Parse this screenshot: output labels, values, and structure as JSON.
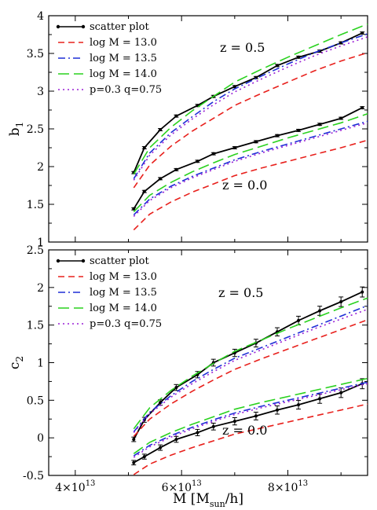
{
  "chart_data": [
    {
      "type": "line",
      "ylabel": "b1",
      "ylim": [
        1,
        4
      ],
      "xlim": [
        35000000000000.0,
        95000000000000.0
      ],
      "yticks": [
        "1",
        "1.5",
        "2",
        "2.5",
        "3",
        "3.5",
        "4"
      ],
      "grid": false,
      "legend": "top-left",
      "x": [
        51000000000000.0,
        52000000000000.0,
        54000000000000.0,
        57000000000000.0,
        60000000000000.0,
        64000000000000.0,
        68000000000000.0,
        72000000000000.0,
        76000000000000.0,
        80000000000000.0,
        84000000000000.0,
        88000000000000.0,
        93000000000000.0
      ],
      "annotations": [
        "z = 0.5",
        "z = 0.0"
      ],
      "series": [
        {
          "name": "scatter plot",
          "style": "solid-errorbar",
          "color": "#000000",
          "group": "z = 0.5",
          "x": [
            51000000000000.0,
            53000000000000.0,
            56000000000000.0,
            59000000000000.0,
            63000000000000.0,
            66000000000000.0,
            70000000000000.0,
            74000000000000.0,
            78000000000000.0,
            82000000000000.0,
            86000000000000.0,
            90000000000000.0,
            94000000000000.0
          ],
          "values": [
            1.92,
            2.25,
            2.49,
            2.67,
            2.81,
            2.93,
            3.06,
            3.18,
            3.34,
            3.45,
            3.53,
            3.64,
            3.77
          ]
        },
        {
          "name": "log M = 13.0",
          "style": "dashed",
          "color": "#e8201c",
          "group": "z = 0.5",
          "x": [
            51000000000000.0,
            54000000000000.0,
            58000000000000.0,
            62000000000000.0,
            66000000000000.0,
            70000000000000.0,
            75000000000000.0,
            80000000000000.0,
            85000000000000.0,
            90000000000000.0,
            95000000000000.0
          ],
          "values": [
            1.72,
            2.02,
            2.27,
            2.47,
            2.64,
            2.81,
            2.97,
            3.12,
            3.27,
            3.4,
            3.51
          ]
        },
        {
          "name": "log M = 13.5",
          "style": "dashdot",
          "color": "#1f2fd6",
          "group": "z = 0.5",
          "x": [
            51000000000000.0,
            54000000000000.0,
            58000000000000.0,
            62000000000000.0,
            66000000000000.0,
            70000000000000.0,
            75000000000000.0,
            80000000000000.0,
            85000000000000.0,
            90000000000000.0,
            95000000000000.0
          ],
          "values": [
            1.84,
            2.18,
            2.45,
            2.66,
            2.86,
            3.03,
            3.2,
            3.36,
            3.51,
            3.64,
            3.76
          ]
        },
        {
          "name": "log M = 14.0",
          "style": "longdash",
          "color": "#2ad21f",
          "group": "z = 0.5",
          "x": [
            51000000000000.0,
            54000000000000.0,
            58000000000000.0,
            62000000000000.0,
            66000000000000.0,
            70000000000000.0,
            75000000000000.0,
            80000000000000.0,
            85000000000000.0,
            90000000000000.0,
            95000000000000.0
          ],
          "values": [
            1.9,
            2.25,
            2.52,
            2.74,
            2.93,
            3.12,
            3.29,
            3.45,
            3.6,
            3.75,
            3.89
          ]
        },
        {
          "name": "p=0.3 q=0.75",
          "style": "dotted",
          "color": "#9a1fd6",
          "group": "z = 0.5",
          "x": [
            51000000000000.0,
            54000000000000.0,
            58000000000000.0,
            62000000000000.0,
            66000000000000.0,
            70000000000000.0,
            75000000000000.0,
            80000000000000.0,
            85000000000000.0,
            90000000000000.0,
            95000000000000.0
          ],
          "values": [
            1.82,
            2.15,
            2.42,
            2.63,
            2.82,
            2.99,
            3.16,
            3.32,
            3.47,
            3.6,
            3.72
          ]
        },
        {
          "name": "scatter plot",
          "style": "solid-errorbar",
          "color": "#000000",
          "group": "z = 0.0",
          "x": [
            51000000000000.0,
            53000000000000.0,
            56000000000000.0,
            59000000000000.0,
            63000000000000.0,
            66000000000000.0,
            70000000000000.0,
            74000000000000.0,
            78000000000000.0,
            82000000000000.0,
            86000000000000.0,
            90000000000000.0,
            94000000000000.0
          ],
          "values": [
            1.44,
            1.67,
            1.84,
            1.96,
            2.07,
            2.17,
            2.25,
            2.33,
            2.41,
            2.48,
            2.56,
            2.64,
            2.78
          ]
        },
        {
          "name": "log M = 13.0",
          "style": "dashed",
          "color": "#e8201c",
          "group": "z = 0.0",
          "x": [
            51000000000000.0,
            54000000000000.0,
            58000000000000.0,
            62000000000000.0,
            66000000000000.0,
            70000000000000.0,
            75000000000000.0,
            80000000000000.0,
            85000000000000.0,
            90000000000000.0,
            95000000000000.0
          ],
          "values": [
            1.16,
            1.37,
            1.53,
            1.66,
            1.77,
            1.88,
            1.98,
            2.07,
            2.16,
            2.25,
            2.35
          ]
        },
        {
          "name": "log M = 13.5",
          "style": "dashdot",
          "color": "#1f2fd6",
          "group": "z = 0.0",
          "x": [
            51000000000000.0,
            54000000000000.0,
            58000000000000.0,
            62000000000000.0,
            66000000000000.0,
            70000000000000.0,
            75000000000000.0,
            80000000000000.0,
            85000000000000.0,
            90000000000000.0,
            95000000000000.0
          ],
          "values": [
            1.36,
            1.57,
            1.74,
            1.87,
            1.98,
            2.09,
            2.2,
            2.3,
            2.4,
            2.5,
            2.6
          ]
        },
        {
          "name": "log M = 14.0",
          "style": "longdash",
          "color": "#2ad21f",
          "group": "z = 0.0",
          "x": [
            51000000000000.0,
            54000000000000.0,
            58000000000000.0,
            62000000000000.0,
            66000000000000.0,
            70000000000000.0,
            75000000000000.0,
            80000000000000.0,
            85000000000000.0,
            90000000000000.0,
            95000000000000.0
          ],
          "values": [
            1.4,
            1.62,
            1.79,
            1.93,
            2.05,
            2.16,
            2.27,
            2.38,
            2.48,
            2.58,
            2.7
          ]
        },
        {
          "name": "p=0.3 q=0.75",
          "style": "dotted",
          "color": "#9a1fd6",
          "group": "z = 0.0",
          "x": [
            51000000000000.0,
            54000000000000.0,
            58000000000000.0,
            62000000000000.0,
            66000000000000.0,
            70000000000000.0,
            75000000000000.0,
            80000000000000.0,
            85000000000000.0,
            90000000000000.0,
            95000000000000.0
          ],
          "values": [
            1.34,
            1.55,
            1.72,
            1.85,
            1.96,
            2.07,
            2.18,
            2.28,
            2.38,
            2.48,
            2.58
          ]
        }
      ]
    },
    {
      "type": "line",
      "ylabel": "c2",
      "xlabel": "M [M_sun/h]",
      "ylim": [
        -0.5,
        2.5
      ],
      "xlim": [
        35000000000000.0,
        95000000000000.0
      ],
      "yticks": [
        "-0.5",
        "0",
        "0.5",
        "1",
        "1.5",
        "2",
        "2.5"
      ],
      "xticks": [
        "2×10^13",
        "4×10^13",
        "6×10^13",
        "8×10^13"
      ],
      "grid": false,
      "legend": "top-left",
      "annotations": [
        "z = 0.5",
        "z = 0.0"
      ],
      "series": [
        {
          "name": "scatter plot",
          "style": "solid-errorbar",
          "color": "#000000",
          "group": "z = 0.5",
          "x": [
            51000000000000.0,
            53000000000000.0,
            56000000000000.0,
            59000000000000.0,
            63000000000000.0,
            66000000000000.0,
            70000000000000.0,
            74000000000000.0,
            78000000000000.0,
            82000000000000.0,
            86000000000000.0,
            90000000000000.0,
            94000000000000.0
          ],
          "values": [
            -0.02,
            0.24,
            0.47,
            0.67,
            0.84,
            1.0,
            1.13,
            1.26,
            1.41,
            1.56,
            1.69,
            1.81,
            1.94
          ]
        },
        {
          "name": "log M = 13.0",
          "style": "dashed",
          "color": "#e8201c",
          "group": "z = 0.5",
          "x": [
            51000000000000.0,
            54000000000000.0,
            58000000000000.0,
            62000000000000.0,
            66000000000000.0,
            70000000000000.0,
            75000000000000.0,
            80000000000000.0,
            85000000000000.0,
            90000000000000.0,
            95000000000000.0
          ],
          "values": [
            0.02,
            0.25,
            0.45,
            0.62,
            0.77,
            0.91,
            1.05,
            1.18,
            1.31,
            1.44,
            1.57
          ]
        },
        {
          "name": "log M = 13.5",
          "style": "dashdot",
          "color": "#1f2fd6",
          "group": "z = 0.5",
          "x": [
            51000000000000.0,
            54000000000000.0,
            58000000000000.0,
            62000000000000.0,
            66000000000000.0,
            70000000000000.0,
            75000000000000.0,
            80000000000000.0,
            85000000000000.0,
            90000000000000.0,
            95000000000000.0
          ],
          "values": [
            0.08,
            0.34,
            0.56,
            0.75,
            0.91,
            1.06,
            1.2,
            1.34,
            1.48,
            1.62,
            1.76
          ]
        },
        {
          "name": "log M = 14.0",
          "style": "longdash",
          "color": "#2ad21f",
          "group": "z = 0.5",
          "x": [
            51000000000000.0,
            54000000000000.0,
            58000000000000.0,
            62000000000000.0,
            66000000000000.0,
            70000000000000.0,
            75000000000000.0,
            80000000000000.0,
            85000000000000.0,
            90000000000000.0,
            95000000000000.0
          ],
          "values": [
            0.12,
            0.4,
            0.63,
            0.82,
            0.99,
            1.15,
            1.3,
            1.45,
            1.59,
            1.73,
            1.86
          ]
        },
        {
          "name": "p=0.3 q=0.75",
          "style": "dotted",
          "color": "#9a1fd6",
          "group": "z = 0.5",
          "x": [
            51000000000000.0,
            54000000000000.0,
            58000000000000.0,
            62000000000000.0,
            66000000000000.0,
            70000000000000.0,
            75000000000000.0,
            80000000000000.0,
            85000000000000.0,
            90000000000000.0,
            95000000000000.0
          ],
          "values": [
            0.07,
            0.32,
            0.54,
            0.72,
            0.88,
            1.03,
            1.17,
            1.31,
            1.45,
            1.58,
            1.71
          ]
        },
        {
          "name": "scatter plot",
          "style": "solid-errorbar",
          "color": "#000000",
          "group": "z = 0.0",
          "x": [
            51000000000000.0,
            53000000000000.0,
            56000000000000.0,
            59000000000000.0,
            63000000000000.0,
            66000000000000.0,
            70000000000000.0,
            74000000000000.0,
            78000000000000.0,
            82000000000000.0,
            86000000000000.0,
            90000000000000.0,
            94000000000000.0
          ],
          "values": [
            -0.33,
            -0.25,
            -0.13,
            -0.02,
            0.07,
            0.15,
            0.22,
            0.29,
            0.37,
            0.44,
            0.52,
            0.6,
            0.72
          ]
        },
        {
          "name": "log M = 13.0",
          "style": "dashed",
          "color": "#e8201c",
          "group": "z = 0.0",
          "x": [
            51000000000000.0,
            54000000000000.0,
            58000000000000.0,
            62000000000000.0,
            66000000000000.0,
            70000000000000.0,
            75000000000000.0,
            80000000000000.0,
            85000000000000.0,
            90000000000000.0,
            95000000000000.0
          ],
          "values": [
            -0.49,
            -0.35,
            -0.23,
            -0.13,
            -0.04,
            0.05,
            0.13,
            0.21,
            0.29,
            0.37,
            0.45
          ]
        },
        {
          "name": "log M = 13.5",
          "style": "dashdot",
          "color": "#1f2fd6",
          "group": "z = 0.0",
          "x": [
            51000000000000.0,
            54000000000000.0,
            58000000000000.0,
            62000000000000.0,
            66000000000000.0,
            70000000000000.0,
            75000000000000.0,
            80000000000000.0,
            85000000000000.0,
            90000000000000.0,
            95000000000000.0
          ],
          "values": [
            -0.24,
            -0.1,
            0.03,
            0.14,
            0.24,
            0.33,
            0.42,
            0.5,
            0.58,
            0.66,
            0.74
          ]
        },
        {
          "name": "log M = 14.0",
          "style": "longdash",
          "color": "#2ad21f",
          "group": "z = 0.0",
          "x": [
            51000000000000.0,
            54000000000000.0,
            58000000000000.0,
            62000000000000.0,
            66000000000000.0,
            70000000000000.0,
            75000000000000.0,
            80000000000000.0,
            85000000000000.0,
            90000000000000.0,
            95000000000000.0
          ],
          "values": [
            -0.21,
            -0.06,
            0.07,
            0.18,
            0.28,
            0.38,
            0.47,
            0.55,
            0.63,
            0.71,
            0.79
          ]
        },
        {
          "name": "p=0.3 q=0.75",
          "style": "dotted",
          "color": "#9a1fd6",
          "group": "z = 0.0",
          "x": [
            51000000000000.0,
            54000000000000.0,
            58000000000000.0,
            62000000000000.0,
            66000000000000.0,
            70000000000000.0,
            75000000000000.0,
            80000000000000.0,
            85000000000000.0,
            90000000000000.0,
            95000000000000.0
          ],
          "values": [
            -0.26,
            -0.12,
            0.01,
            0.12,
            0.22,
            0.31,
            0.4,
            0.48,
            0.56,
            0.64,
            0.72
          ]
        }
      ]
    }
  ],
  "legend_labels": [
    "scatter plot",
    "log M = 13.0",
    "log M = 13.5",
    "log M = 14.0",
    "p=0.3 q=0.75"
  ],
  "colors": {
    "scatter": "#000000",
    "logM13": "#e8201c",
    "logM135": "#1f2fd6",
    "logM14": "#2ad21f",
    "pq": "#9a1fd6"
  }
}
